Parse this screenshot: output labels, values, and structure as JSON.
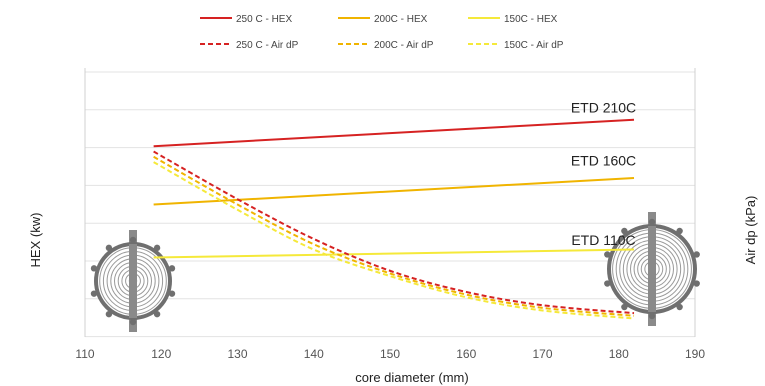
{
  "chart_data": {
    "type": "line",
    "xlabel": "core diameter (mm)",
    "ylabel_left": "HEX (kw)",
    "ylabel_right": "Air dp (kPa)",
    "x_ticks": [
      "110",
      "120",
      "130",
      "140",
      "150",
      "160",
      "170",
      "180",
      "190"
    ],
    "xlim": [
      110,
      190
    ],
    "grid": "horizontal",
    "legend_position": "top",
    "series": [
      {
        "name": "250 C - HEX",
        "color": "#d62222",
        "dash": "solid",
        "axis": "left",
        "x": [
          119,
          182
        ],
        "y": [
          7.2,
          8.2
        ]
      },
      {
        "name": "200C - HEX",
        "color": "#f0b400",
        "dash": "solid",
        "axis": "left",
        "x": [
          119,
          182
        ],
        "y": [
          5.0,
          6.0
        ]
      },
      {
        "name": "150C - HEX",
        "color": "#f5e93a",
        "dash": "solid",
        "axis": "left",
        "x": [
          119,
          182
        ],
        "y": [
          3.0,
          3.3
        ]
      },
      {
        "name": "250 C - Air dP",
        "color": "#d62222",
        "dash": "dashed",
        "axis": "right",
        "x": [
          119,
          130,
          140,
          150,
          160,
          170,
          182
        ],
        "y": [
          7.0,
          5.2,
          3.7,
          2.5,
          1.7,
          1.2,
          0.9
        ]
      },
      {
        "name": "200C - Air dP",
        "color": "#f0b400",
        "dash": "dashed",
        "axis": "right",
        "x": [
          119,
          130,
          140,
          150,
          160,
          170,
          182
        ],
        "y": [
          6.8,
          5.0,
          3.5,
          2.4,
          1.6,
          1.1,
          0.8
        ]
      },
      {
        "name": "150C - Air dP",
        "color": "#f5e93a",
        "dash": "dashed",
        "axis": "right",
        "x": [
          119,
          130,
          140,
          150,
          160,
          170,
          182
        ],
        "y": [
          6.6,
          4.8,
          3.3,
          2.3,
          1.5,
          1.0,
          0.7
        ]
      }
    ],
    "annotations": [
      {
        "text": "ETD 210C",
        "x": 178,
        "y": 8.4,
        "axis": "left"
      },
      {
        "text": "ETD 160C",
        "x": 178,
        "y": 6.4,
        "axis": "left"
      },
      {
        "text": "ETD 110C",
        "x": 178,
        "y": 3.4,
        "axis": "left"
      }
    ]
  }
}
